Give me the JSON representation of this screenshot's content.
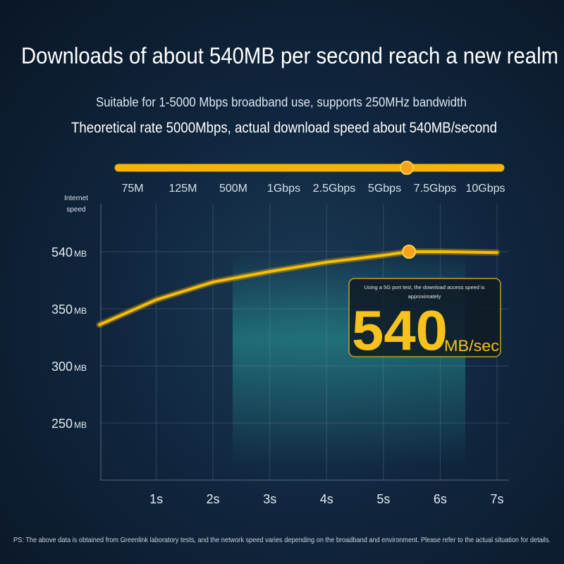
{
  "chart_data": {
    "type": "line",
    "title": "Downloads of about 540MB per second reach a new realm",
    "subtitle": "Suitable for 1-5000 Mbps broadband use, supports 250MHz bandwidth",
    "subtitle2": "Theoretical rate 5000Mbps, actual download speed about 540MB/second",
    "slider_labels": [
      "75M",
      "125M",
      "500M",
      "1Gbps",
      "2.5Gbps",
      "5Gbps",
      "7.5Gbps",
      "10Gbps"
    ],
    "y_label": "Internet speed",
    "y_unit": "MB",
    "x": [
      0,
      1,
      2,
      3,
      4,
      5,
      5.45,
      6,
      7
    ],
    "series": [
      {
        "color": "#f5c000",
        "values": [
          336,
          380,
          439,
          474,
          505,
          528,
          540,
          540,
          537
        ]
      }
    ],
    "xlim": [
      0,
      7
    ],
    "xticks": [
      {
        "value": 1,
        "label": "1s"
      },
      {
        "value": 2,
        "label": "2s"
      },
      {
        "value": 3,
        "label": "3s"
      },
      {
        "value": 4,
        "label": "4s"
      },
      {
        "value": 5,
        "label": "5s"
      },
      {
        "value": 6,
        "label": "6s"
      },
      {
        "value": 7,
        "label": "7s"
      }
    ],
    "ylim": [
      200,
      700
    ],
    "yticks": [
      250,
      300,
      350,
      540
    ],
    "grid": true,
    "callout": {
      "note": "Using a 5G port test, the download access speed is",
      "note2": "approximately",
      "value": 540,
      "unit": "MB/sec"
    },
    "footnote": "PS: The above data is obtained from Greenlink laboratory tests, and the network speed varies depending on the broadband and environment. Please refer to the actual situation for details."
  }
}
